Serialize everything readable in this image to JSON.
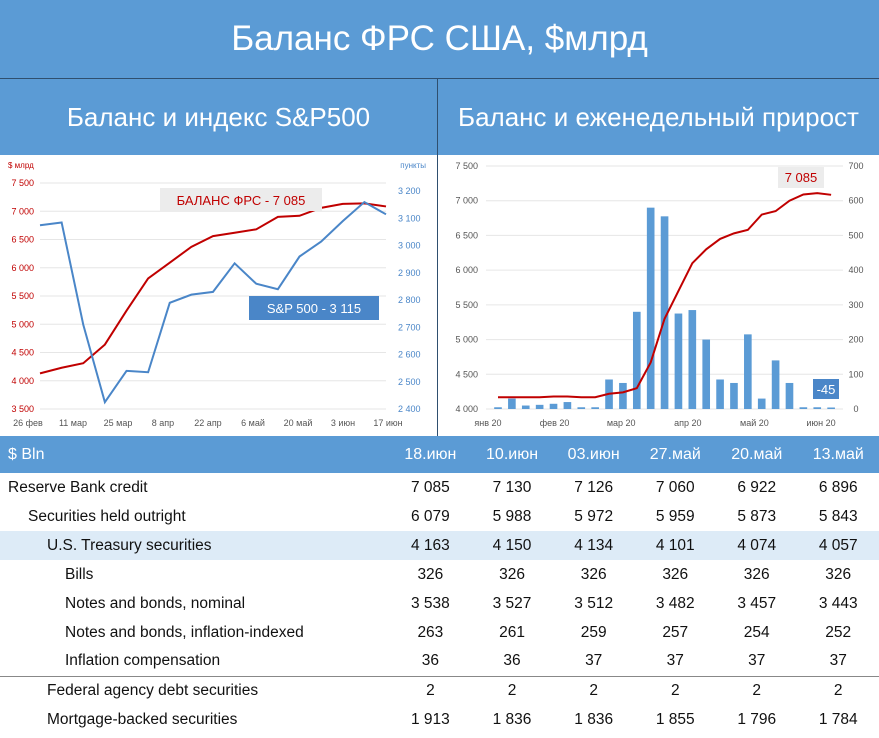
{
  "title": "Баланс ФРС США, $млрд",
  "left_panel_title": "Баланс и индекс S&P500",
  "right_panel_title": "Баланс и еженедельный прирост",
  "colors": {
    "header_bg": "#5b9bd5",
    "balance_line": "#c00000",
    "sp500_line": "#4a86c8",
    "bar": "#5b9bd5",
    "highlight_row": "#ddebf7"
  },
  "chart_data": [
    {
      "type": "line",
      "y_left_unit": "$ млрд",
      "y_right_unit": "пункты",
      "x_ticks": [
        "26 фев",
        "11 мар",
        "25 мар",
        "8 апр",
        "22 апр",
        "6 май",
        "20 май",
        "3 июн",
        "17 июн"
      ],
      "y_left_ticks": [
        "3 500",
        "4 000",
        "4 500",
        "5 000",
        "5 500",
        "6 000",
        "6 500",
        "7 000",
        "7 500"
      ],
      "y_right_ticks": [
        "2 400",
        "2 500",
        "2 600",
        "2 700",
        "2 800",
        "2 900",
        "3 000",
        "3 100",
        "3 200"
      ],
      "ylim_left": [
        3500,
        7500
      ],
      "ylim_right": [
        2400,
        3230
      ],
      "series": [
        {
          "name": "БАЛАНС ФРС - 7 085",
          "axis": "left",
          "x": [
            0,
            1,
            2,
            3,
            4,
            5,
            6,
            7,
            8,
            9,
            10,
            11,
            12,
            13,
            14,
            15,
            16
          ],
          "values": [
            4130,
            4230,
            4310,
            4640,
            5240,
            5810,
            6090,
            6370,
            6560,
            6620,
            6680,
            6900,
            6920,
            7060,
            7130,
            7140,
            7085
          ]
        },
        {
          "name": "S&P 500 - 3 115",
          "axis": "right",
          "x": [
            0,
            1,
            2,
            3,
            4,
            5,
            6,
            7,
            8,
            9,
            10,
            11,
            12,
            13,
            14,
            15,
            16
          ],
          "values": [
            3075,
            3085,
            2710,
            2425,
            2540,
            2535,
            2790,
            2820,
            2830,
            2935,
            2860,
            2840,
            2960,
            3015,
            3090,
            3160,
            3115
          ]
        }
      ],
      "annotations": [
        "БАЛАНС ФРС - 7 085",
        "S&P 500 - 3 115"
      ]
    },
    {
      "type": "bar",
      "x_ticks": [
        "янв 20",
        "фев 20",
        "мар 20",
        "апр 20",
        "май 20",
        "июн 20"
      ],
      "y_left_ticks": [
        "4 000",
        "4 500",
        "5 000",
        "5 500",
        "6 000",
        "6 500",
        "7 000",
        "7 500"
      ],
      "y_right_ticks": [
        "0",
        "100",
        "200",
        "300",
        "400",
        "500",
        "600",
        "700"
      ],
      "ylim_left": [
        4000,
        7500
      ],
      "ylim_right": [
        0,
        700
      ],
      "series": [
        {
          "name": "Баланс",
          "axis": "left",
          "type": "line",
          "values": [
            4170,
            4170,
            4170,
            4170,
            4180,
            4180,
            4170,
            4170,
            4220,
            4240,
            4300,
            4670,
            5300,
            5700,
            6100,
            6300,
            6450,
            6530,
            6580,
            6800,
            6850,
            7000,
            7090,
            7110,
            7085
          ]
        },
        {
          "name": "Еженедельный прирост",
          "axis": "right",
          "type": "bar",
          "values": [
            5,
            30,
            10,
            12,
            15,
            20,
            5,
            5,
            85,
            75,
            280,
            580,
            555,
            275,
            285,
            200,
            85,
            75,
            215,
            30,
            140,
            75,
            5,
            5,
            -45
          ]
        }
      ],
      "annotations": [
        "7 085",
        "-45"
      ]
    }
  ],
  "table": {
    "header_label": "$ Bln",
    "columns": [
      "18.июн",
      "10.июн",
      "03.июн",
      "27.май",
      "20.май",
      "13.май"
    ],
    "rows": [
      {
        "label": "Reserve Bank credit",
        "values": [
          "7 085",
          "7 130",
          "7 126",
          "7 060",
          "6 922",
          "6 896"
        ]
      },
      {
        "label": "Securities held outright",
        "values": [
          "6 079",
          "5 988",
          "5 972",
          "5 959",
          "5 873",
          "5 843"
        ]
      },
      {
        "label": "U.S. Treasury securities",
        "values": [
          "4 163",
          "4 150",
          "4 134",
          "4 101",
          "4 074",
          "4 057"
        ]
      },
      {
        "label": "Bills",
        "values": [
          "326",
          "326",
          "326",
          "326",
          "326",
          "326"
        ]
      },
      {
        "label": "Notes and bonds, nominal",
        "values": [
          "3 538",
          "3 527",
          "3 512",
          "3 482",
          "3 457",
          "3 443"
        ]
      },
      {
        "label": "Notes and bonds, inflation-indexed",
        "values": [
          "263",
          "261",
          "259",
          "257",
          "254",
          "252"
        ]
      },
      {
        "label": "Inflation compensation",
        "values": [
          "36",
          "36",
          "37",
          "37",
          "37",
          "37"
        ]
      },
      {
        "label": "Federal agency debt securities",
        "values": [
          "2",
          "2",
          "2",
          "2",
          "2",
          "2"
        ]
      },
      {
        "label": "Mortgage-backed securities",
        "values": [
          "1 913",
          "1 836",
          "1 836",
          "1 855",
          "1 796",
          "1 784"
        ]
      }
    ]
  }
}
